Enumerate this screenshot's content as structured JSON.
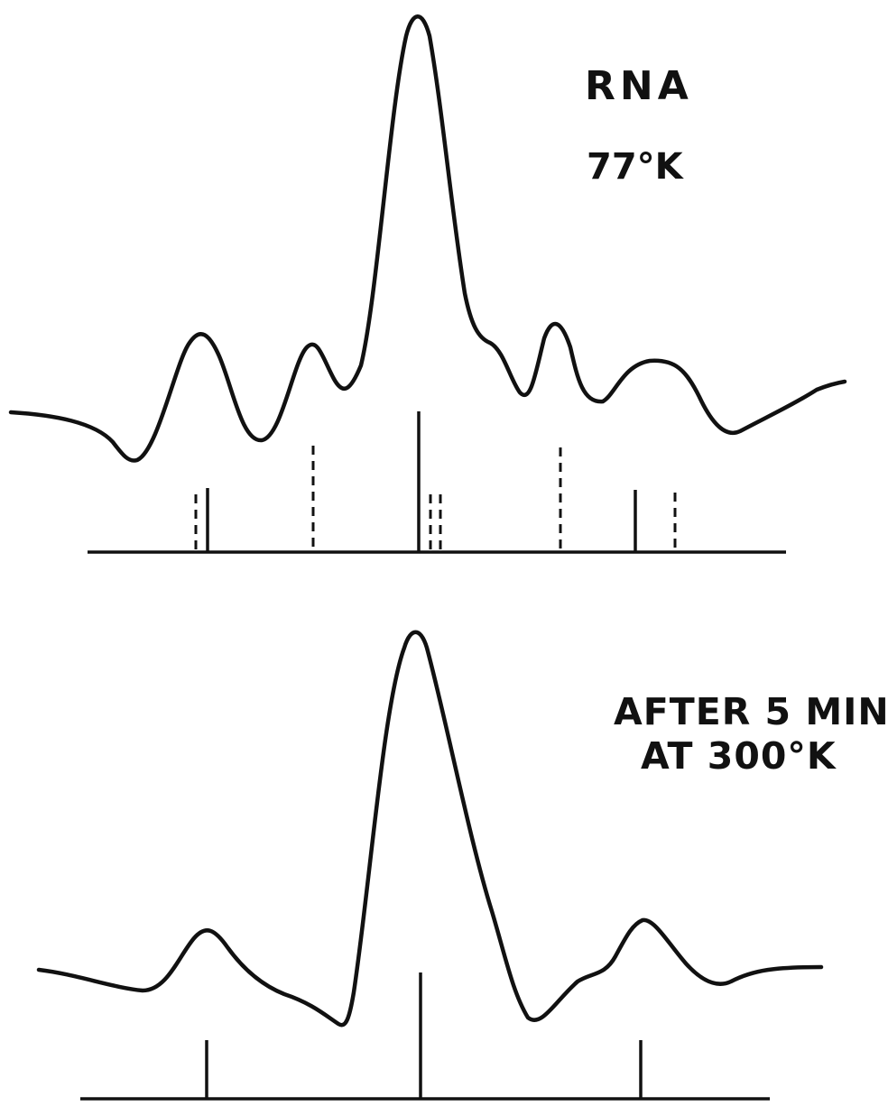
{
  "panels": [
    {
      "label_lines": [
        "RNA",
        "77°K"
      ],
      "marker_styles": [
        "dashed",
        "solid",
        "dashed",
        "solid",
        "dashed",
        "dashed",
        "dashed",
        "solid",
        "dashed"
      ]
    },
    {
      "label_lines": [
        "AFTER 5 MIN.",
        "AT 300°K"
      ],
      "marker_styles": [
        "solid",
        "solid",
        "solid"
      ]
    }
  ]
}
